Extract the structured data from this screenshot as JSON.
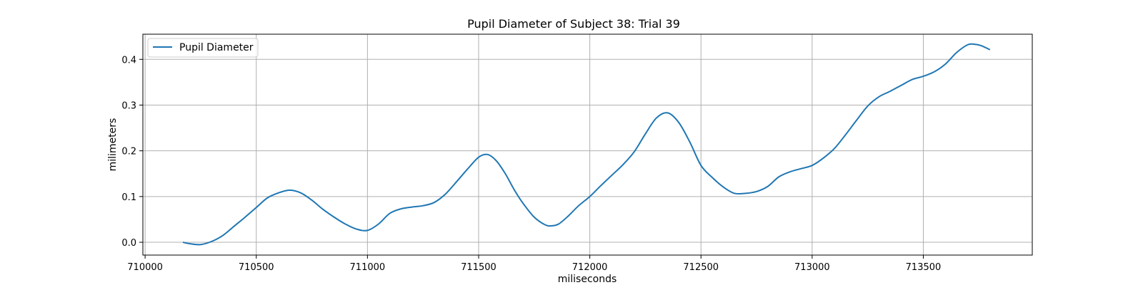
{
  "chart_data": {
    "type": "line",
    "title": "Pupil Diameter of Subject 38: Trial 39",
    "xlabel": "miliseconds",
    "ylabel": "milimeters",
    "xlim": [
      709990,
      713990
    ],
    "ylim": [
      -0.028,
      0.455
    ],
    "xticks": [
      710000,
      710500,
      711000,
      711500,
      712000,
      712500,
      713000,
      713500
    ],
    "yticks": [
      0.0,
      0.1,
      0.2,
      0.3,
      0.4
    ],
    "ytick_labels": [
      "0.0",
      "0.1",
      "0.2",
      "0.3",
      "0.4"
    ],
    "grid": true,
    "legend_position": "top-left",
    "series": [
      {
        "name": "Pupil Diameter",
        "color": "#1f77b4",
        "x": [
          710170,
          710200,
          710250,
          710300,
          710350,
          710400,
          710450,
          710500,
          710550,
          710600,
          710650,
          710700,
          710750,
          710800,
          710850,
          710900,
          710950,
          711000,
          711050,
          711100,
          711150,
          711200,
          711250,
          711300,
          711350,
          711400,
          711450,
          711500,
          711540,
          711580,
          711620,
          711660,
          711700,
          711750,
          711800,
          711830,
          711860,
          711900,
          711950,
          712000,
          712050,
          712100,
          712150,
          712200,
          712250,
          712300,
          712350,
          712400,
          712450,
          712500,
          712550,
          712600,
          712650,
          712700,
          712750,
          712800,
          712850,
          712900,
          712950,
          713000,
          713050,
          713100,
          713150,
          713200,
          713250,
          713300,
          713350,
          713400,
          713450,
          713500,
          713550,
          713600,
          713650,
          713700,
          713730,
          713760,
          713800
        ],
        "y": [
          0.0,
          -0.003,
          -0.005,
          0.002,
          0.015,
          0.035,
          0.055,
          0.076,
          0.097,
          0.108,
          0.114,
          0.108,
          0.092,
          0.072,
          0.055,
          0.04,
          0.029,
          0.026,
          0.04,
          0.063,
          0.073,
          0.077,
          0.08,
          0.087,
          0.105,
          0.132,
          0.16,
          0.186,
          0.192,
          0.178,
          0.15,
          0.115,
          0.085,
          0.055,
          0.038,
          0.036,
          0.04,
          0.056,
          0.08,
          0.1,
          0.124,
          0.147,
          0.17,
          0.198,
          0.237,
          0.272,
          0.283,
          0.262,
          0.219,
          0.168,
          0.142,
          0.121,
          0.107,
          0.107,
          0.111,
          0.122,
          0.143,
          0.154,
          0.161,
          0.168,
          0.184,
          0.205,
          0.235,
          0.267,
          0.298,
          0.318,
          0.33,
          0.343,
          0.356,
          0.363,
          0.373,
          0.39,
          0.415,
          0.432,
          0.433,
          0.43,
          0.421
        ]
      }
    ]
  }
}
